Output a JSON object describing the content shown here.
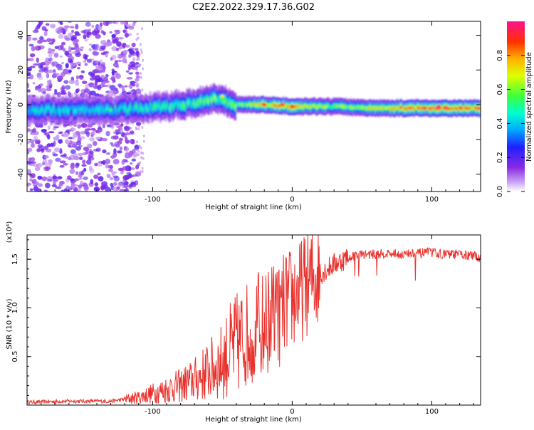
{
  "title": "C2E2.2022.329.17.36.G02",
  "chart_data": [
    {
      "type": "heatmap",
      "xlabel": "Height of straight line (km)",
      "ylabel": "Frequency (Hz)",
      "xlim": [
        -190,
        135
      ],
      "ylim": [
        -50,
        48
      ],
      "x_ticks": [
        -100,
        0,
        100
      ],
      "x_tick_labels": [
        "-100",
        "0",
        "100"
      ],
      "y_ticks": [
        -40,
        -20,
        0,
        20,
        40
      ],
      "y_tick_labels": [
        "-40",
        "-20",
        "0",
        "20",
        "40"
      ],
      "colorbar": {
        "label": "Normalized spectral amplitude",
        "range": [
          0,
          1
        ],
        "ticks": [
          0.0,
          0.2,
          0.4,
          0.6,
          0.8
        ],
        "tick_labels": [
          "0.0",
          "0.2",
          "0.4",
          "0.6",
          "0.8"
        ]
      },
      "ridge_track": [
        {
          "x": -130,
          "freq": -3,
          "amp": 0.45
        },
        {
          "x": -110,
          "freq": -2,
          "amp": 0.5
        },
        {
          "x": -90,
          "freq": -1,
          "amp": 0.55
        },
        {
          "x": -70,
          "freq": 1,
          "amp": 0.55
        },
        {
          "x": -55,
          "freq": 4,
          "amp": 0.6
        },
        {
          "x": -40,
          "freq": 0,
          "amp": 0.6
        },
        {
          "x": -20,
          "freq": 0,
          "amp": 0.8
        },
        {
          "x": 0,
          "freq": -1,
          "amp": 0.85
        },
        {
          "x": 30,
          "freq": -1,
          "amp": 0.6
        },
        {
          "x": 60,
          "freq": -2,
          "amp": 0.75
        },
        {
          "x": 90,
          "freq": -2,
          "amp": 0.9
        },
        {
          "x": 110,
          "freq": -2,
          "amp": 0.95
        },
        {
          "x": 135,
          "freq": -2,
          "amp": 0.9
        }
      ],
      "grid": false
    },
    {
      "type": "line",
      "xlabel": "Height of straight line (km)",
      "ylabel": "SNR (10 * v/v)",
      "y_multiplier": "(x10⁴)",
      "xlim": [
        -190,
        135
      ],
      "ylim": [
        0,
        1.75
      ],
      "x_ticks": [
        -100,
        0,
        100
      ],
      "x_tick_labels": [
        "-100",
        "0",
        "100"
      ],
      "y_ticks": [
        0.5,
        1.0,
        1.5
      ],
      "y_tick_labels": [
        "0.5",
        "1.0",
        "1.5"
      ],
      "series": [
        {
          "color": "#e8322d",
          "x": [
            -190,
            -160,
            -130,
            -120,
            -110,
            -100,
            -90,
            -80,
            -70,
            -60,
            -50,
            -45,
            -40,
            -35,
            -30,
            -25,
            -20,
            -15,
            -10,
            -5,
            0,
            5,
            10,
            20,
            30,
            40,
            50,
            60,
            70,
            80,
            90,
            100,
            110,
            120,
            135
          ],
          "y": [
            0.03,
            0.04,
            0.04,
            0.06,
            0.08,
            0.12,
            0.16,
            0.2,
            0.26,
            0.35,
            0.45,
            0.55,
            0.62,
            0.7,
            0.75,
            0.85,
            0.8,
            0.95,
            0.9,
            1.05,
            1.1,
            1.15,
            1.25,
            1.35,
            1.45,
            1.52,
            1.55,
            1.55,
            1.56,
            1.55,
            1.56,
            1.57,
            1.55,
            1.55,
            1.52
          ]
        }
      ],
      "grid": false
    }
  ]
}
